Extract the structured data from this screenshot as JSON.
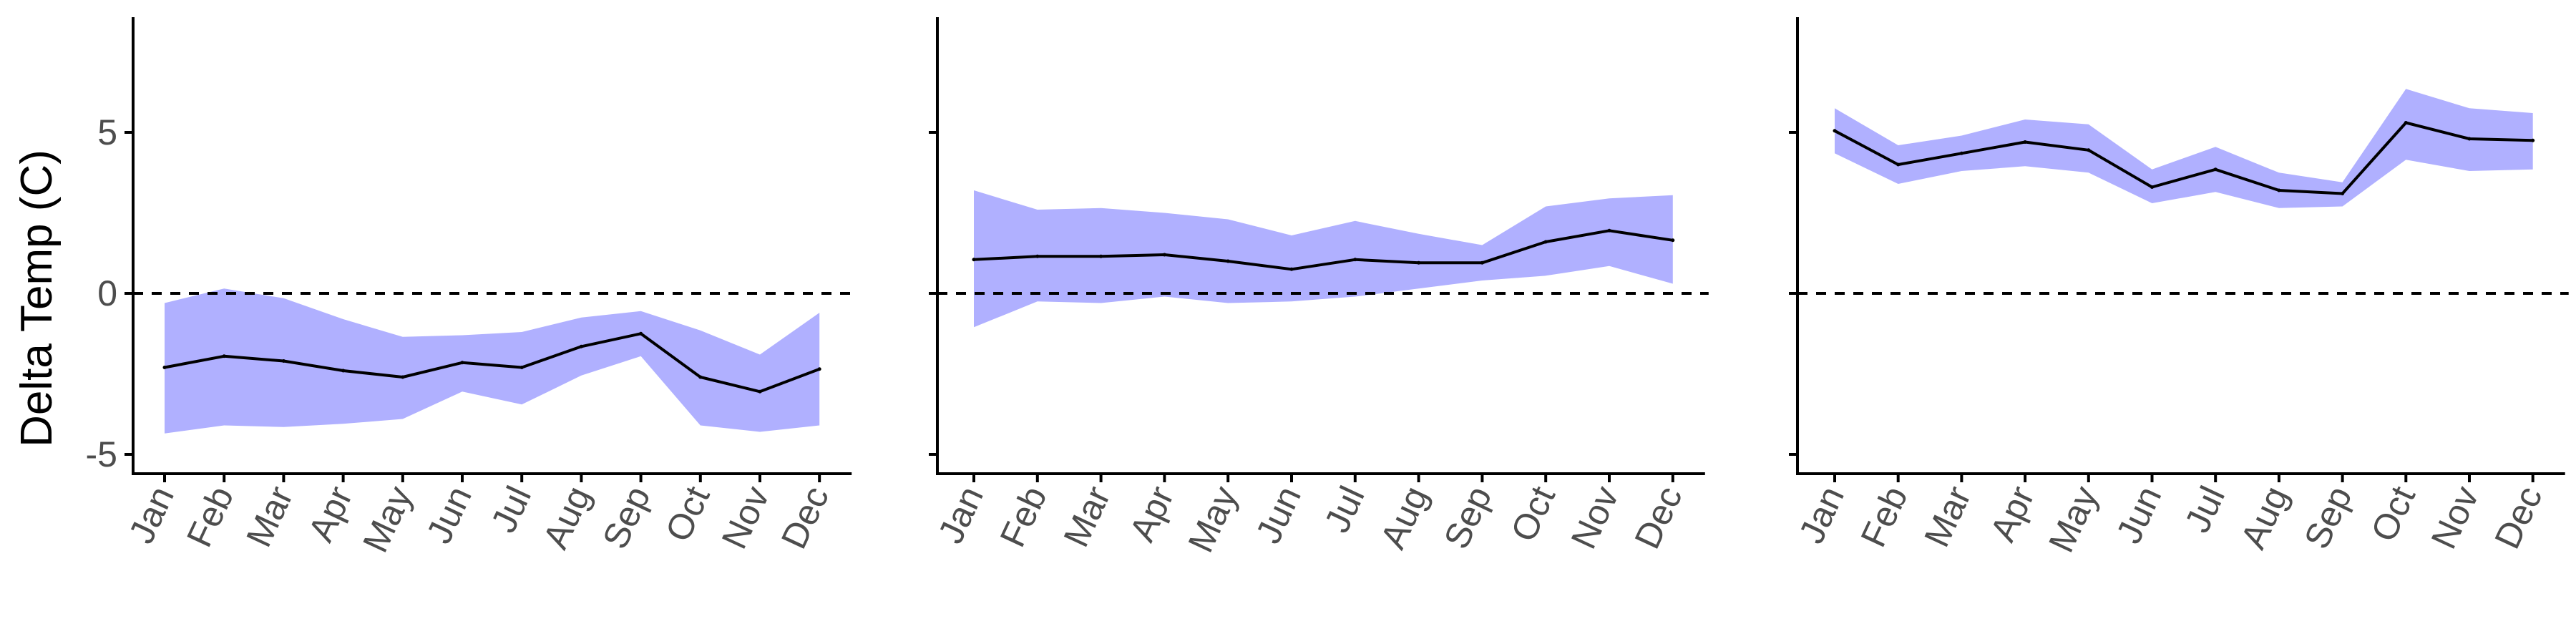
{
  "y_axis_label": "Delta Temp (C)",
  "colors": {
    "band_fill": "#b0b0ff",
    "line": "#000000",
    "axis": "#000000",
    "tick_text": "#4d4d4d",
    "reference_line": "#000000"
  },
  "chart_data": [
    {
      "type": "line",
      "panel": 1,
      "x": [
        "Jan",
        "Feb",
        "Mar",
        "Apr",
        "May",
        "Jun",
        "Jul",
        "Aug",
        "Sep",
        "Oct",
        "Nov",
        "Dec"
      ],
      "series": [
        {
          "values": [
            -2.3,
            -1.95,
            -2.1,
            -2.4,
            -2.6,
            -2.15,
            -2.3,
            -1.65,
            -1.25,
            -2.6,
            -3.05,
            -2.35
          ],
          "lower": [
            -4.35,
            -4.1,
            -4.15,
            -4.05,
            -3.9,
            -3.05,
            -3.45,
            -2.55,
            -1.95,
            -4.1,
            -4.3,
            -4.1
          ],
          "upper": [
            -0.3,
            0.15,
            -0.15,
            -0.8,
            -1.35,
            -1.3,
            -1.2,
            -0.75,
            -0.55,
            -1.15,
            -1.9,
            -0.6
          ]
        }
      ],
      "y_ticks": [
        -5,
        0,
        5
      ],
      "ylim": [
        -5.6,
        8.5
      ],
      "reference_line_y": 0,
      "grid": false,
      "legend": "none"
    },
    {
      "type": "line",
      "panel": 2,
      "x": [
        "Jan",
        "Feb",
        "Mar",
        "Apr",
        "May",
        "Jun",
        "Jul",
        "Aug",
        "Sep",
        "Oct",
        "Nov",
        "Dec"
      ],
      "series": [
        {
          "values": [
            1.05,
            1.15,
            1.15,
            1.2,
            1.0,
            0.75,
            1.05,
            0.95,
            0.95,
            1.6,
            1.95,
            1.65
          ],
          "lower": [
            -1.05,
            -0.25,
            -0.3,
            -0.1,
            -0.3,
            -0.25,
            -0.1,
            0.15,
            0.4,
            0.55,
            0.85,
            0.3
          ],
          "upper": [
            3.2,
            2.6,
            2.65,
            2.5,
            2.3,
            1.8,
            2.25,
            1.85,
            1.5,
            2.7,
            2.95,
            3.05
          ]
        }
      ],
      "y_ticks": [
        -5,
        0,
        5
      ],
      "ylim": [
        -5.6,
        8.5
      ],
      "reference_line_y": 0,
      "grid": false,
      "legend": "none"
    },
    {
      "type": "line",
      "panel": 3,
      "x": [
        "Jan",
        "Feb",
        "Mar",
        "Apr",
        "May",
        "Jun",
        "Jul",
        "Aug",
        "Sep",
        "Oct",
        "Nov",
        "Dec"
      ],
      "series": [
        {
          "values": [
            5.05,
            4.0,
            4.35,
            4.7,
            4.45,
            3.3,
            3.85,
            3.2,
            3.1,
            5.3,
            4.8,
            4.75
          ],
          "lower": [
            4.35,
            3.4,
            3.8,
            3.95,
            3.75,
            2.8,
            3.15,
            2.65,
            2.7,
            4.15,
            3.8,
            3.85
          ],
          "upper": [
            5.75,
            4.6,
            4.9,
            5.4,
            5.25,
            3.85,
            4.55,
            3.75,
            3.45,
            6.35,
            5.75,
            5.6
          ]
        }
      ],
      "y_ticks": [
        -5,
        0,
        5
      ],
      "ylim": [
        -5.6,
        8.5
      ],
      "reference_line_y": 0,
      "grid": false,
      "legend": "none"
    }
  ]
}
